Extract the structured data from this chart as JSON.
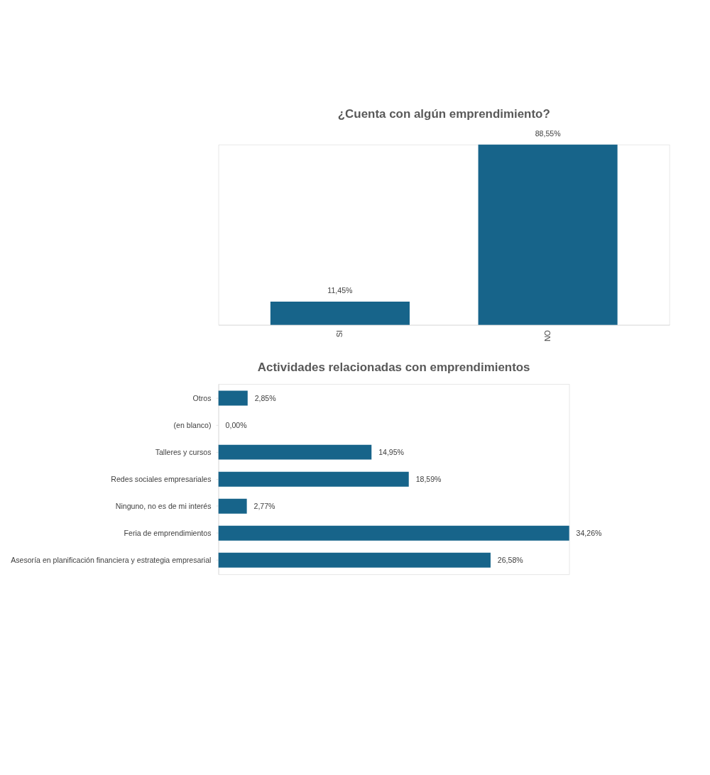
{
  "chart_data": [
    {
      "type": "bar",
      "title": "¿Cuenta con algún emprendimiento?",
      "categories": [
        "SI",
        "NO"
      ],
      "values": [
        11.45,
        88.55
      ],
      "color": "#17648a",
      "value_labels": [
        "11,45%",
        "88,55%"
      ]
    },
    {
      "type": "bar",
      "orientation": "horizontal",
      "title": "Actividades relacionadas con emprendimientos",
      "categories": [
        "Otros",
        "(en blanco)",
        "Talleres y cursos",
        "Redes sociales empresariales",
        "Ninguno, no es de mi interés",
        "Feria de emprendimientos",
        "Asesoría en planificación financiera y estrategia empresarial"
      ],
      "values": [
        2.85,
        0.0,
        14.95,
        18.59,
        2.77,
        34.26,
        26.58
      ],
      "color": "#17648a",
      "value_labels": [
        "2,85%",
        "0,00%",
        "14,95%",
        "18,59%",
        "2,77%",
        "34,26%",
        "26,58%"
      ]
    }
  ]
}
